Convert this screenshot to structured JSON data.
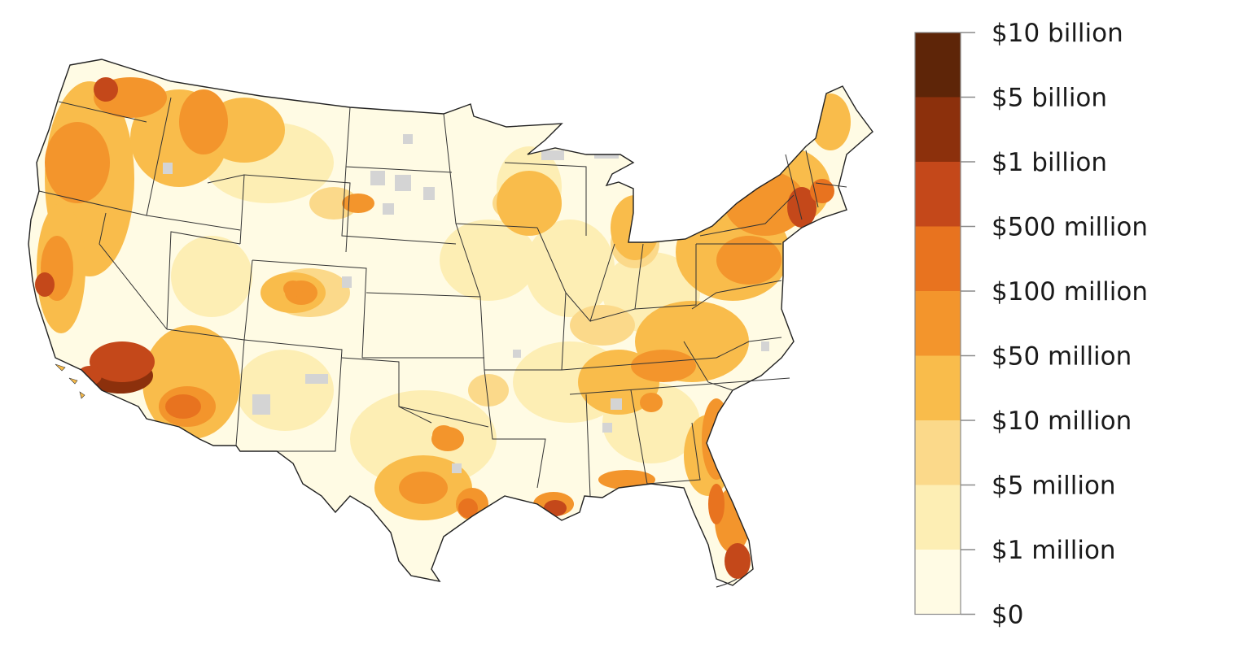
{
  "legend": {
    "labels": [
      "$10 billion",
      "$5 billion",
      "$1 billion",
      "$500 million",
      "$100 million",
      "$50 million",
      "$10 million",
      "$5 million",
      "$1 million",
      "$0"
    ],
    "bins": [
      {
        "label": "$5 billion – $10 billion",
        "color": "#5e2508"
      },
      {
        "label": "$1 billion – $5 billion",
        "color": "#8c300c"
      },
      {
        "label": "$500 million – $1 billion",
        "color": "#c4481a"
      },
      {
        "label": "$100 million – $500 million",
        "color": "#e8731f"
      },
      {
        "label": "$50 million – $100 million",
        "color": "#f3952c"
      },
      {
        "label": "$10 million – $50 million",
        "color": "#f9bc4b"
      },
      {
        "label": "$5 million – $10 million",
        "color": "#fbd98a"
      },
      {
        "label": "$1 million – $5 million",
        "color": "#fdeeb4"
      },
      {
        "label": "$0 – $1 million",
        "color": "#fffbe4"
      }
    ],
    "no_data_color": "#d4d4d4"
  },
  "map": {
    "region": "contiguous-united-states",
    "hotspots": [
      {
        "area": "southern-california",
        "bin": 1
      },
      {
        "area": "south-florida",
        "bin": 2
      },
      {
        "area": "seattle-area",
        "bin": 2
      },
      {
        "area": "new-york-city-area",
        "bin": 2
      },
      {
        "area": "new-orleans",
        "bin": 2
      },
      {
        "area": "houston",
        "bin": 3
      },
      {
        "area": "phoenix",
        "bin": 3
      },
      {
        "area": "san-francisco-bay",
        "bin": 2
      },
      {
        "area": "boston-area",
        "bin": 3
      },
      {
        "area": "gulf-coast-florida",
        "bin": 3
      },
      {
        "area": "dallas",
        "bin": 4
      },
      {
        "area": "denver",
        "bin": 4
      },
      {
        "area": "atlanta",
        "bin": 4
      },
      {
        "area": "charleston",
        "bin": 3
      }
    ]
  }
}
